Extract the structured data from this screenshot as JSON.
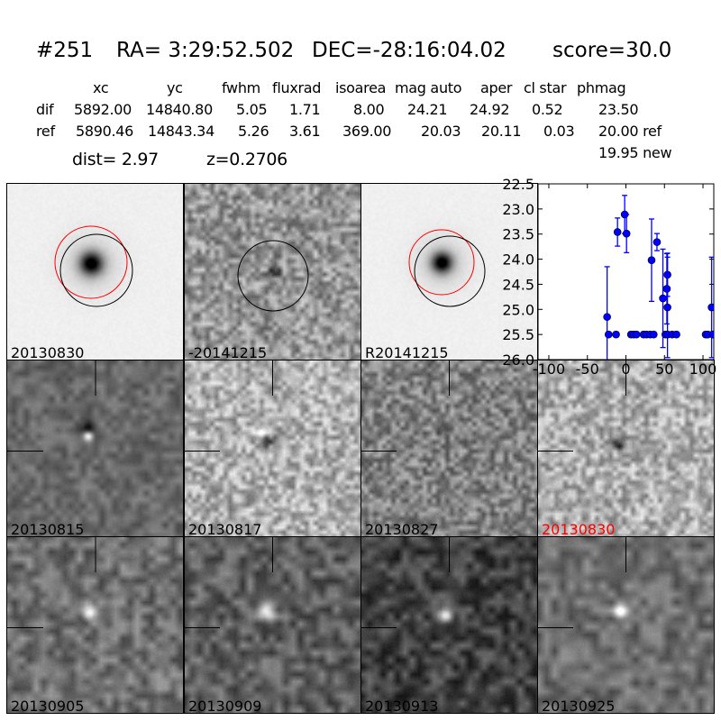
{
  "header": {
    "id": "#251",
    "ra": "RA= 3:29:52.502",
    "dec": "DEC=-28:16:04.02",
    "score": "score=30.0"
  },
  "table": {
    "columns": [
      "xc",
      "yc",
      "fwhm",
      "fluxrad",
      "isoarea",
      "mag auto",
      "aper",
      "cl star",
      "phmag"
    ],
    "rows": [
      {
        "label": "dif",
        "values": [
          "5892.00",
          "14840.80",
          "5.05",
          "1.71",
          "8.00",
          "24.21",
          "24.92",
          "0.52",
          "23.50"
        ]
      },
      {
        "label": "ref",
        "values": [
          "5890.46",
          "14843.34",
          "5.26",
          "3.61",
          "369.00",
          "20.03",
          "20.11",
          "0.03",
          "20.00 ref"
        ]
      }
    ],
    "dist": "dist=  2.97",
    "z": "z=0.2706",
    "phmag_new": "19.95 new"
  },
  "panels": {
    "top": [
      "20130830",
      "-20141215",
      "R20141215"
    ],
    "middle": [
      "20130815",
      "20130817",
      "20130827",
      "20130830"
    ],
    "bottom": [
      "20130905",
      "20130909",
      "20130913",
      "20130925"
    ],
    "highlight_color": "#ff0000",
    "highlight_label": "20130830"
  },
  "chart_data": {
    "type": "scatter",
    "title": "",
    "xlabel": "",
    "ylabel": "",
    "xlim": [
      -114,
      114
    ],
    "ylim": [
      26.0,
      22.5
    ],
    "y_inverted": true,
    "xticks": [
      "-100",
      "-50",
      "0",
      "50",
      "100"
    ],
    "xtick_values": [
      -100,
      -50,
      0,
      50,
      100
    ],
    "yticks": [
      "22.5",
      "23.0",
      "23.5",
      "24.0",
      "24.5",
      "25.0",
      "25.5",
      "26.0"
    ],
    "ytick_values": [
      22.5,
      23.0,
      23.5,
      24.0,
      24.5,
      25.0,
      25.5,
      26.0
    ],
    "color": "#0000ff",
    "points": [
      {
        "x": -24.4,
        "y": 25.15,
        "err": 1.0
      },
      {
        "x": -22.5,
        "y": 25.5,
        "err": 0.05
      },
      {
        "x": -12.8,
        "y": 25.5,
        "err": 0.05
      },
      {
        "x": -10.9,
        "y": 23.46,
        "err": 0.28
      },
      {
        "x": -1.6,
        "y": 23.11,
        "err": 0.38
      },
      {
        "x": 0.8,
        "y": 23.49,
        "err": 0.38
      },
      {
        "x": 6.6,
        "y": 25.5,
        "err": 0.05
      },
      {
        "x": 10.0,
        "y": 25.5,
        "err": 0.05
      },
      {
        "x": 13.6,
        "y": 25.5,
        "err": 0.05
      },
      {
        "x": 22.9,
        "y": 25.5,
        "err": 0.05
      },
      {
        "x": 26.7,
        "y": 25.5,
        "err": 0.05
      },
      {
        "x": 31.4,
        "y": 25.5,
        "err": 0.05
      },
      {
        "x": 33.3,
        "y": 24.02,
        "err": 0.82
      },
      {
        "x": 36.0,
        "y": 25.5,
        "err": 0.05
      },
      {
        "x": 40.3,
        "y": 23.66,
        "err": 0.17
      },
      {
        "x": 48.0,
        "y": 24.78,
        "err": 0.98
      },
      {
        "x": 51.2,
        "y": 25.5,
        "err": 0.05
      },
      {
        "x": 53.1,
        "y": 24.59,
        "err": 0.7
      },
      {
        "x": 53.9,
        "y": 24.31,
        "err": 0.43
      },
      {
        "x": 53.9,
        "y": 24.96,
        "err": 1.0
      },
      {
        "x": 54.3,
        "y": 25.5,
        "err": 0.05
      },
      {
        "x": 60.0,
        "y": 25.5,
        "err": 0.05
      },
      {
        "x": 65.5,
        "y": 25.5,
        "err": 0.05
      },
      {
        "x": 103.5,
        "y": 25.5,
        "err": 0.05
      },
      {
        "x": 106.2,
        "y": 25.5,
        "err": 0.05
      },
      {
        "x": 111.2,
        "y": 24.96,
        "err": 1.0
      },
      {
        "x": 112.8,
        "y": 25.5,
        "err": 0.05
      }
    ]
  }
}
